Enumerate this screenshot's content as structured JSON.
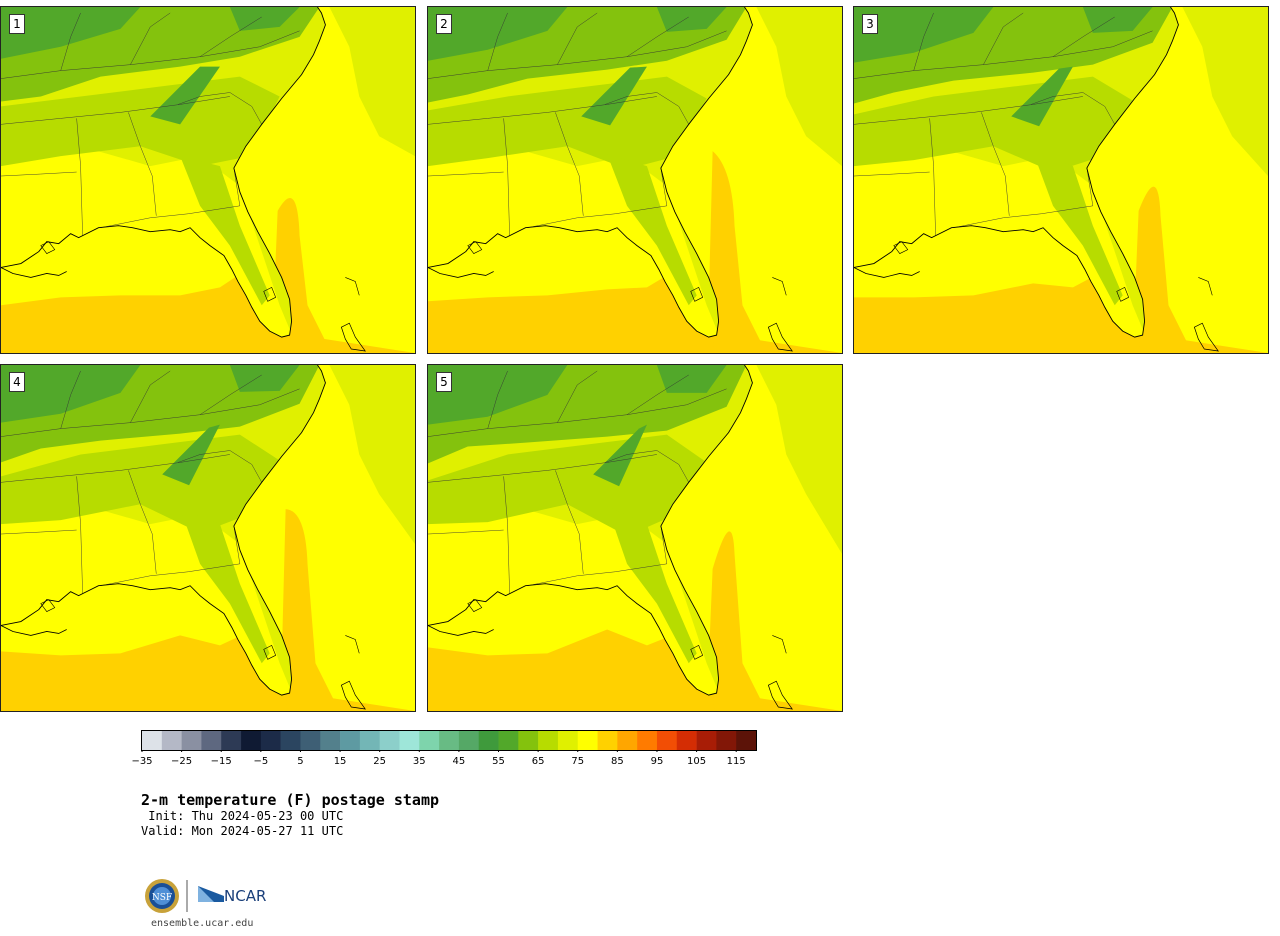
{
  "panels": [
    {
      "label": "1",
      "variant": 0
    },
    {
      "label": "2",
      "variant": 1
    },
    {
      "label": "3",
      "variant": 2
    },
    {
      "label": "4",
      "variant": 3
    },
    {
      "label": "5",
      "variant": 4
    }
  ],
  "colorbar": {
    "colors": [
      "#dde2e8",
      "#b4b8c6",
      "#8a90a2",
      "#5e6880",
      "#2d3a55",
      "#0f1a33",
      "#1c2b48",
      "#2b4560",
      "#3e5f75",
      "#53808c",
      "#5e9aa2",
      "#73b6b6",
      "#8ccfca",
      "#9ee6d9",
      "#7ed4ac",
      "#68bb84",
      "#55a866",
      "#3f9a3c",
      "#52a82a",
      "#84c20d",
      "#b7dc00",
      "#e0f000",
      "#ffff00",
      "#ffd100",
      "#ffa600",
      "#ff7b00",
      "#f24e05",
      "#d42d04",
      "#a81d06",
      "#821707",
      "#5c1308"
    ],
    "tick_labels": [
      "−35",
      "−25",
      "−15",
      "−5",
      "5",
      "15",
      "25",
      "35",
      "45",
      "55",
      "65",
      "75",
      "85",
      "95",
      "105",
      "115"
    ],
    "tick_values": [
      -35,
      -25,
      -15,
      -5,
      5,
      15,
      25,
      35,
      45,
      55,
      65,
      75,
      85,
      95,
      105,
      115
    ],
    "min": -35,
    "max": 120
  },
  "title": "2-m temperature (F) postage stamp",
  "init_line": " Init: Thu 2024-05-23 00 UTC",
  "valid_line": "Valid: Mon 2024-05-27 11 UTC",
  "logo": {
    "nsf_text": "NSF",
    "ncar_text": "NCAR"
  },
  "url": "ensemble.ucar.edu"
}
